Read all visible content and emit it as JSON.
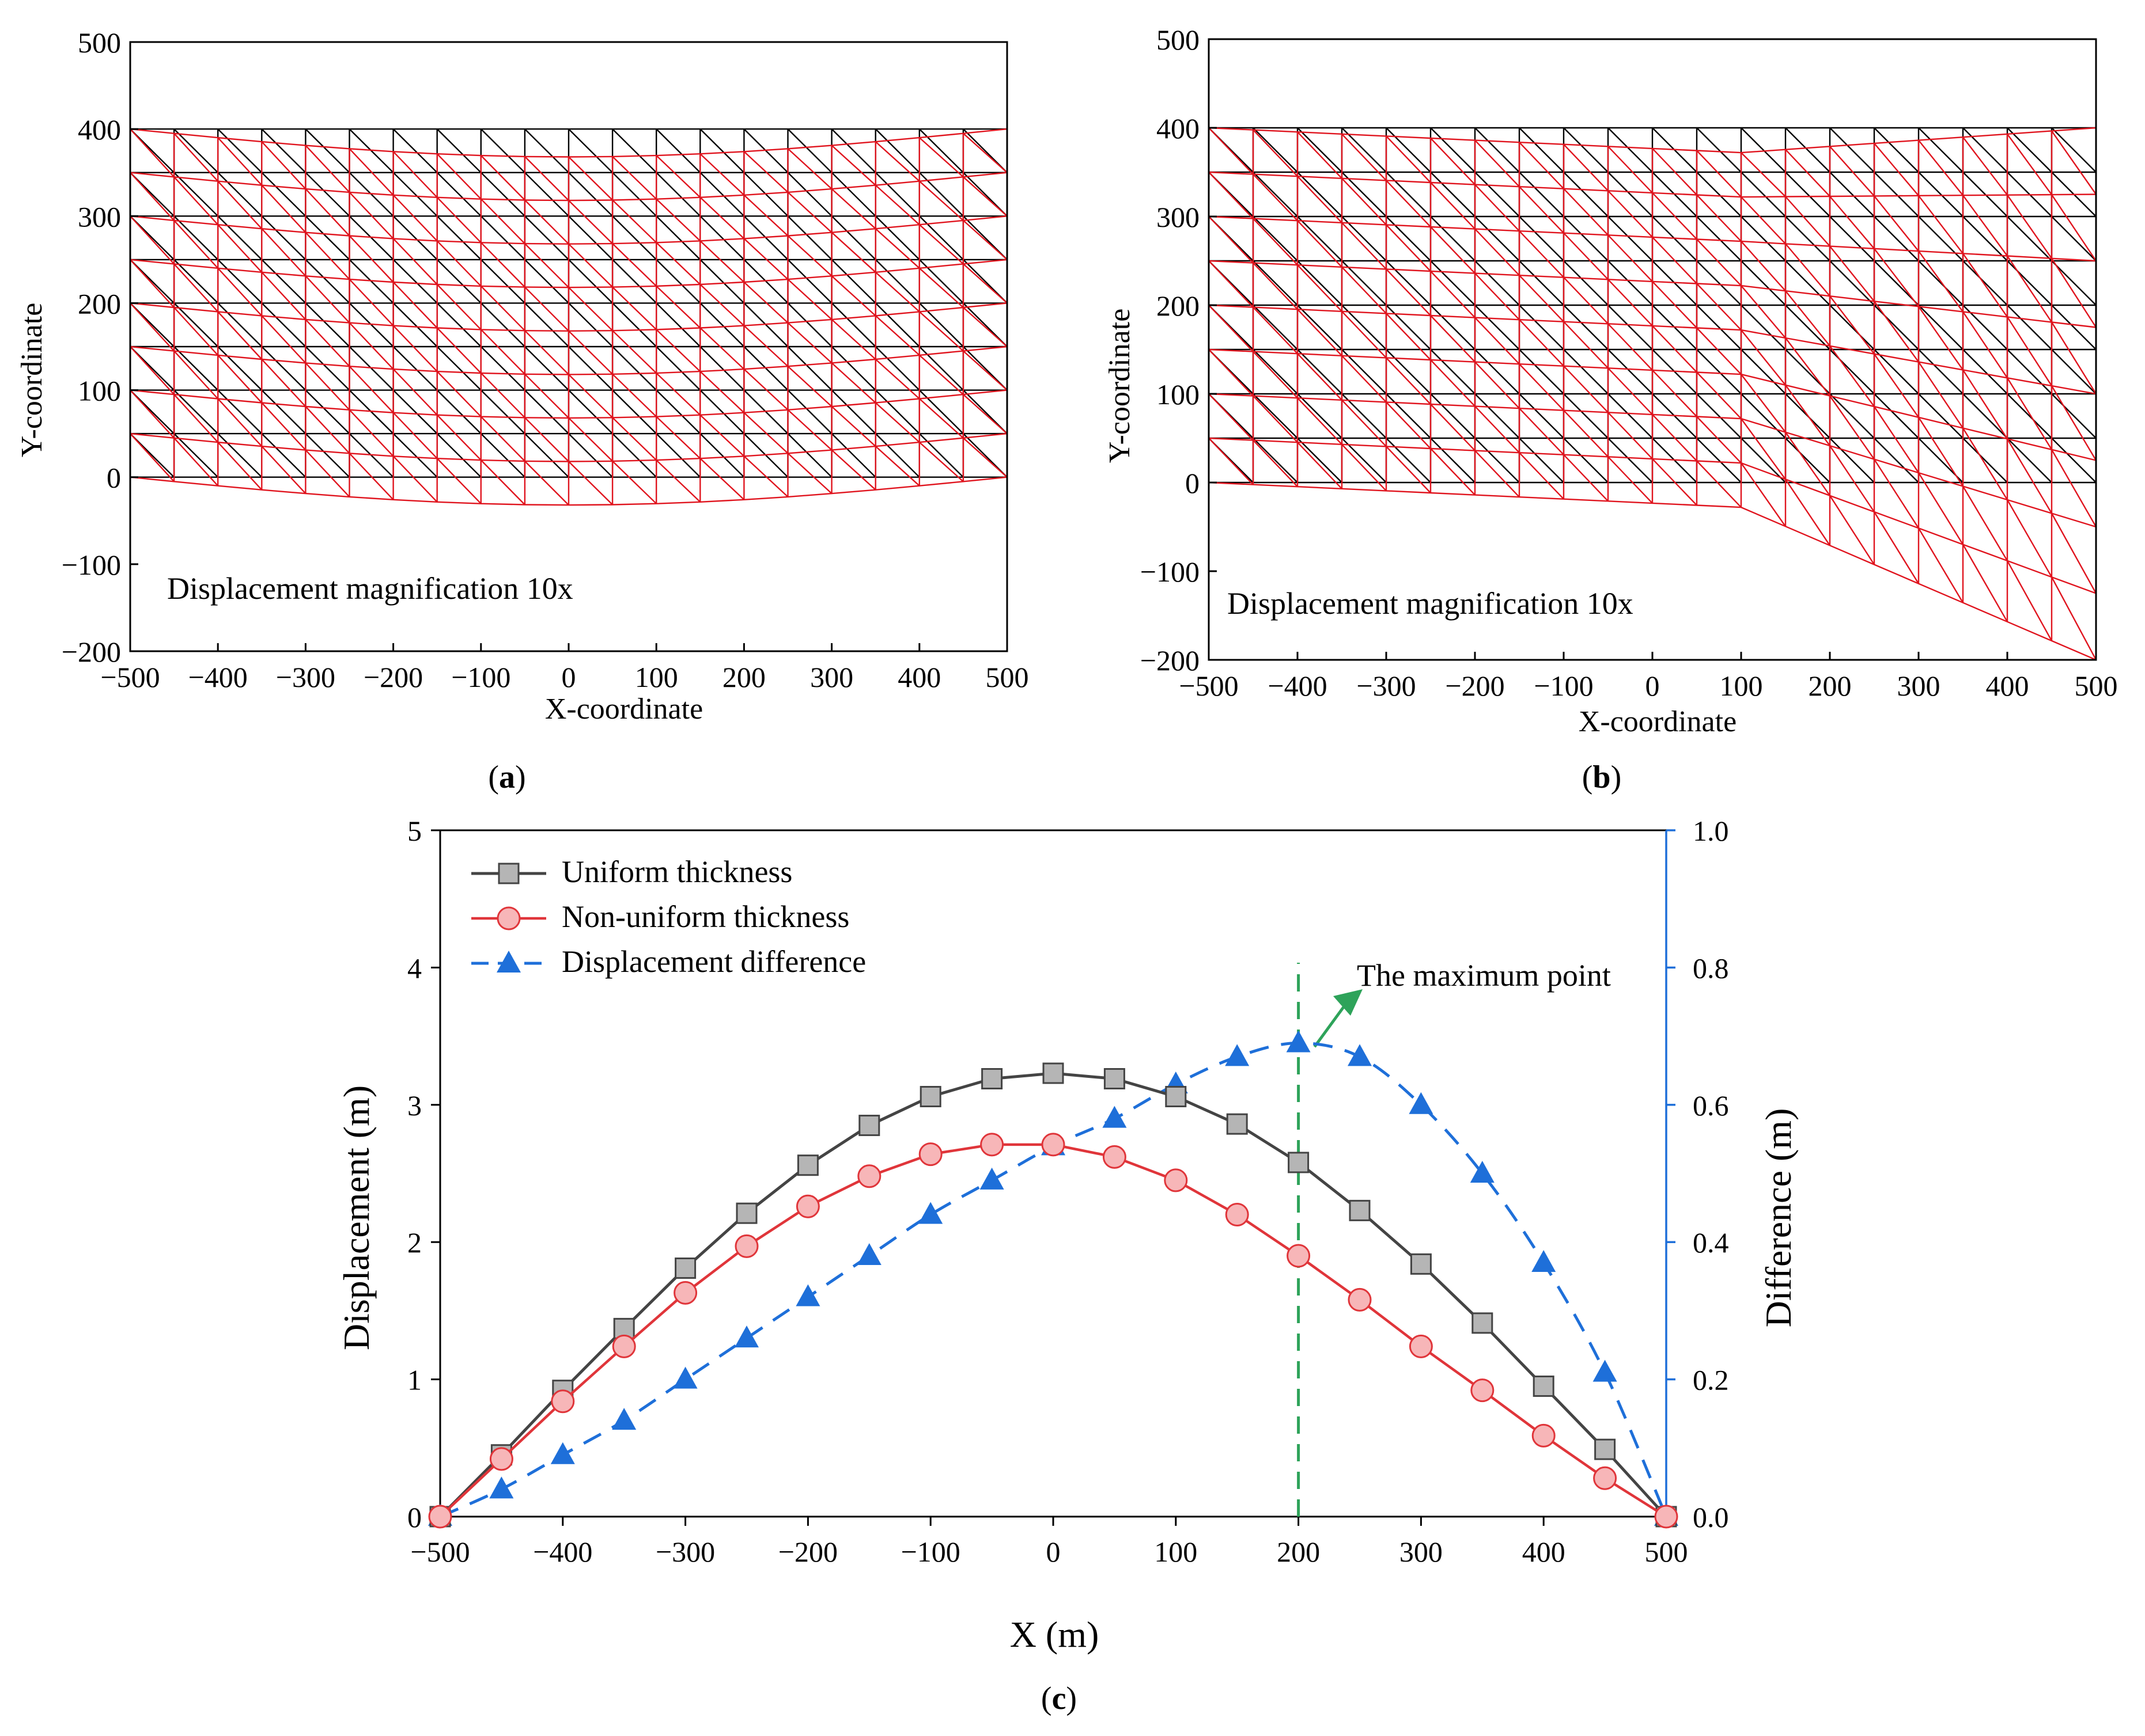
{
  "colors": {
    "original_mesh": "#000000",
    "deformed_mesh": "#e0141e",
    "uniform_line": "#444444",
    "uniform_marker": "#b5b5b5",
    "nonuniform_line": "#e0353a",
    "nonuniform_marker": "#f7b6b8",
    "difference": "#1e6fd9",
    "max_line": "#2ea35a",
    "right_axis": "#1e6fd9"
  },
  "chart_data": [
    {
      "id": "a",
      "type": "mesh",
      "panel_label": "a",
      "xlabel": "X-coordinate",
      "ylabel": "Y-coordinate",
      "xlim": [
        -500,
        500
      ],
      "ylim": [
        -200,
        500
      ],
      "xticks": [
        "−500",
        "−400",
        "−300",
        "−200",
        "−100",
        "0",
        "100",
        "200",
        "300",
        "400",
        "500"
      ],
      "yticks": [
        "500",
        "400",
        "300",
        "200",
        "100",
        "0",
        "−100",
        "−200"
      ],
      "annotation": "Displacement magnification 10x",
      "mesh": {
        "x_min": -500,
        "x_max": 500,
        "y_min": 0,
        "y_max": 400,
        "nx": 20,
        "ny": 8
      },
      "deformation": "uniform",
      "max_sag": 32
    },
    {
      "id": "b",
      "type": "mesh",
      "panel_label": "b",
      "xlabel": "X-coordinate",
      "ylabel": "Y-coordinate",
      "xlim": [
        -500,
        500
      ],
      "ylim": [
        -200,
        500
      ],
      "xticks": [
        "−500",
        "−400",
        "−300",
        "−200",
        "−100",
        "0",
        "100",
        "200",
        "300",
        "400",
        "500"
      ],
      "yticks": [
        "500",
        "400",
        "300",
        "200",
        "100",
        "0",
        "−100",
        "−200"
      ],
      "annotation": "Displacement magnification 10x",
      "mesh": {
        "x_min": -500,
        "x_max": 500,
        "y_min": 0,
        "y_max": 400,
        "nx": 20,
        "ny": 8
      },
      "deformation": "non-uniform",
      "kink_x": 100,
      "bottom_profile": {
        "x": [
          -500,
          100,
          500
        ],
        "y": [
          0,
          -28,
          -200
        ]
      },
      "top_profile": {
        "x": [
          -500,
          100,
          500
        ],
        "y": [
          400,
          372,
          400
        ]
      }
    },
    {
      "id": "c",
      "type": "line",
      "panel_label": "c",
      "xlabel": "X (m)",
      "ylabel": "Displacement (m)",
      "y2label": "Difference (m)",
      "xlim": [
        -500,
        500
      ],
      "ylim": [
        0,
        5
      ],
      "y2lim": [
        0.0,
        1.0
      ],
      "xticks": [
        "−500",
        "−400",
        "−300",
        "−200",
        "−100",
        "0",
        "100",
        "200",
        "300",
        "400",
        "500"
      ],
      "yticks": [
        "0",
        "1",
        "2",
        "3",
        "4",
        "5"
      ],
      "y2ticks": [
        "0.0",
        "0.2",
        "0.4",
        "0.6",
        "0.8",
        "1.0"
      ],
      "x": [
        -500,
        -450,
        -400,
        -350,
        -300,
        -250,
        -200,
        -150,
        -100,
        -50,
        0,
        50,
        100,
        150,
        200,
        250,
        300,
        350,
        400,
        450,
        500
      ],
      "series": [
        {
          "name": "Uniform thickness",
          "axis": "left",
          "marker": "square",
          "values": [
            0.0,
            0.45,
            0.92,
            1.37,
            1.81,
            2.21,
            2.56,
            2.85,
            3.06,
            3.19,
            3.23,
            3.19,
            3.06,
            2.86,
            2.58,
            2.23,
            1.84,
            1.41,
            0.95,
            0.49,
            0.0
          ]
        },
        {
          "name": "Non-uniform thickness",
          "axis": "left",
          "marker": "circle",
          "values": [
            0.0,
            0.42,
            0.84,
            1.24,
            1.63,
            1.97,
            2.26,
            2.48,
            2.64,
            2.71,
            2.71,
            2.62,
            2.45,
            2.2,
            1.9,
            1.58,
            1.24,
            0.92,
            0.59,
            0.28,
            0.0
          ]
        },
        {
          "name": "Displacement difference",
          "axis": "right",
          "marker": "triangle",
          "dashed": true,
          "values": [
            0.0,
            0.04,
            0.09,
            0.14,
            0.2,
            0.26,
            0.32,
            0.38,
            0.44,
            0.49,
            0.54,
            0.58,
            0.63,
            0.67,
            0.69,
            0.67,
            0.6,
            0.5,
            0.37,
            0.21,
            0.0
          ]
        }
      ],
      "max_point_x": 200,
      "annotation": "The maximum point"
    }
  ]
}
